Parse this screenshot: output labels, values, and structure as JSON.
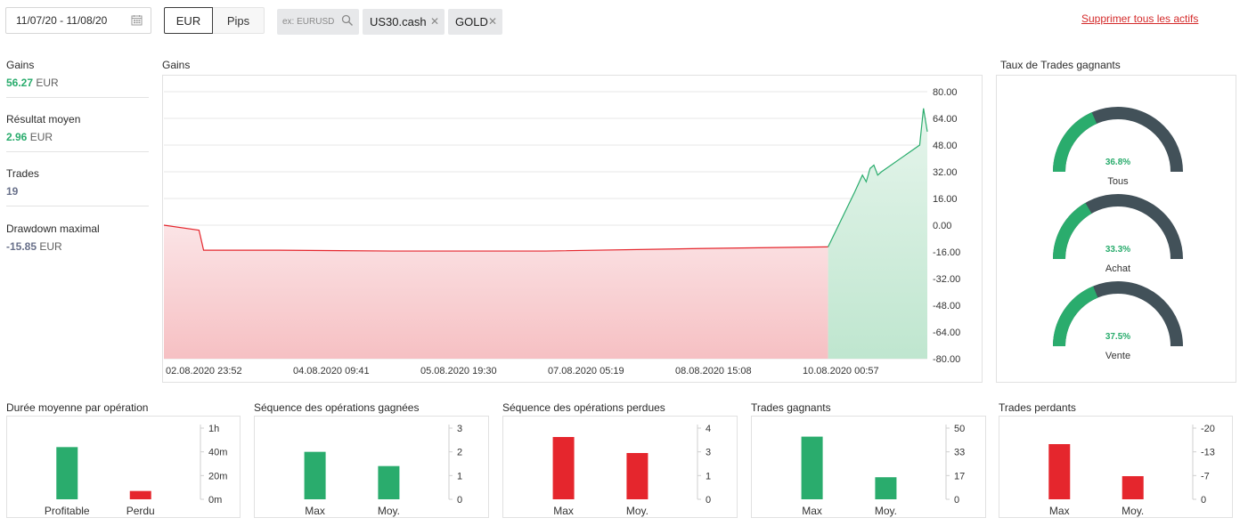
{
  "toolbar": {
    "date_range": "11/07/20 - 11/08/20",
    "currency_eur": "EUR",
    "currency_pips": "Pips",
    "search_placeholder": "ex: EURUSD",
    "chips": [
      "US30.cash",
      "GOLD"
    ],
    "remove_all": "Supprimer tous les actifs"
  },
  "stats": [
    {
      "label": "Gains",
      "value": "56.27",
      "unit": "EUR"
    },
    {
      "label": "Résultat moyen",
      "value": "2.96",
      "unit": "EUR"
    },
    {
      "label": "Trades",
      "value": "19",
      "unit": ""
    },
    {
      "label": "Drawdown maximal",
      "value": "-15.85",
      "unit": "EUR"
    }
  ],
  "colors": {
    "green": "#2aac6d",
    "red": "#e5262d",
    "gauge_dark": "#425159",
    "stat_green": "#2aac6d",
    "stat_gray": "#68708a"
  },
  "chart_data": [
    {
      "type": "area",
      "title": "Gains",
      "ylim": [
        -80,
        80
      ],
      "yticks": [
        "80.00",
        "64.00",
        "48.00",
        "32.00",
        "16.00",
        "0.00",
        "-16.00",
        "-32.00",
        "-48.00",
        "-64.00",
        "-80.00"
      ],
      "xticks": [
        "02.08.2020 23:52",
        "04.08.2020 09:41",
        "05.08.2020 19:30",
        "07.08.2020 05:19",
        "08.08.2020 15:08",
        "10.08.2020 00:57"
      ],
      "x": [
        0,
        0.046,
        0.052,
        0.15,
        0.3,
        0.5,
        0.7,
        0.87,
        0.905,
        0.915,
        0.92,
        0.925,
        0.93,
        0.935,
        0.94,
        0.99,
        0.995,
        1.0
      ],
      "y": [
        0,
        -3,
        -15,
        -15,
        -15.5,
        -15.5,
        -14,
        -13,
        20,
        30,
        26,
        34,
        36,
        30,
        32,
        48,
        70,
        56
      ],
      "grid": true
    },
    {
      "type": "gauge",
      "title": "Taux de Trades gagnants",
      "series": [
        {
          "name": "Tous",
          "value": 36.8,
          "label": "36.8%"
        },
        {
          "name": "Achat",
          "value": 33.3,
          "label": "33.3%"
        },
        {
          "name": "Vente",
          "value": 37.5,
          "label": "37.5%"
        }
      ]
    },
    {
      "type": "bar",
      "title": "Durée moyenne par opération",
      "categories": [
        "Profitable",
        "Perdu"
      ],
      "values": [
        44,
        7
      ],
      "ylim": [
        0,
        60
      ],
      "yticks": [
        "1h",
        "40m",
        "20m",
        "0m"
      ],
      "colors": [
        "#2aac6d",
        "#e5262d"
      ]
    },
    {
      "type": "bar",
      "title": "Séquence des opérations gagnées",
      "categories": [
        "Max",
        "Moy."
      ],
      "values": [
        2,
        1.4
      ],
      "ylim": [
        0,
        3
      ],
      "yticks": [
        "3",
        "2",
        "1",
        "0"
      ],
      "colors": [
        "#2aac6d",
        "#2aac6d"
      ]
    },
    {
      "type": "bar",
      "title": "Séquence des opérations perdues",
      "categories": [
        "Max",
        "Moy."
      ],
      "values": [
        3.5,
        2.6
      ],
      "ylim": [
        0,
        4
      ],
      "yticks": [
        "4",
        "3",
        "1",
        "0"
      ],
      "colors": [
        "#e5262d",
        "#e5262d"
      ]
    },
    {
      "type": "bar",
      "title": "Trades gagnants",
      "categories": [
        "Max",
        "Moy."
      ],
      "values": [
        44,
        15.5
      ],
      "ylim": [
        0,
        50
      ],
      "yticks": [
        "50",
        "33",
        "17",
        "0"
      ],
      "colors": [
        "#2aac6d",
        "#2aac6d"
      ]
    },
    {
      "type": "bar",
      "title": "Trades perdants",
      "categories": [
        "Max",
        "Moy."
      ],
      "values": [
        -15.5,
        -6.5
      ],
      "ylim": [
        0,
        -20
      ],
      "yticks": [
        "-20",
        "-13",
        "-7",
        "0"
      ],
      "colors": [
        "#e5262d",
        "#e5262d"
      ]
    }
  ]
}
